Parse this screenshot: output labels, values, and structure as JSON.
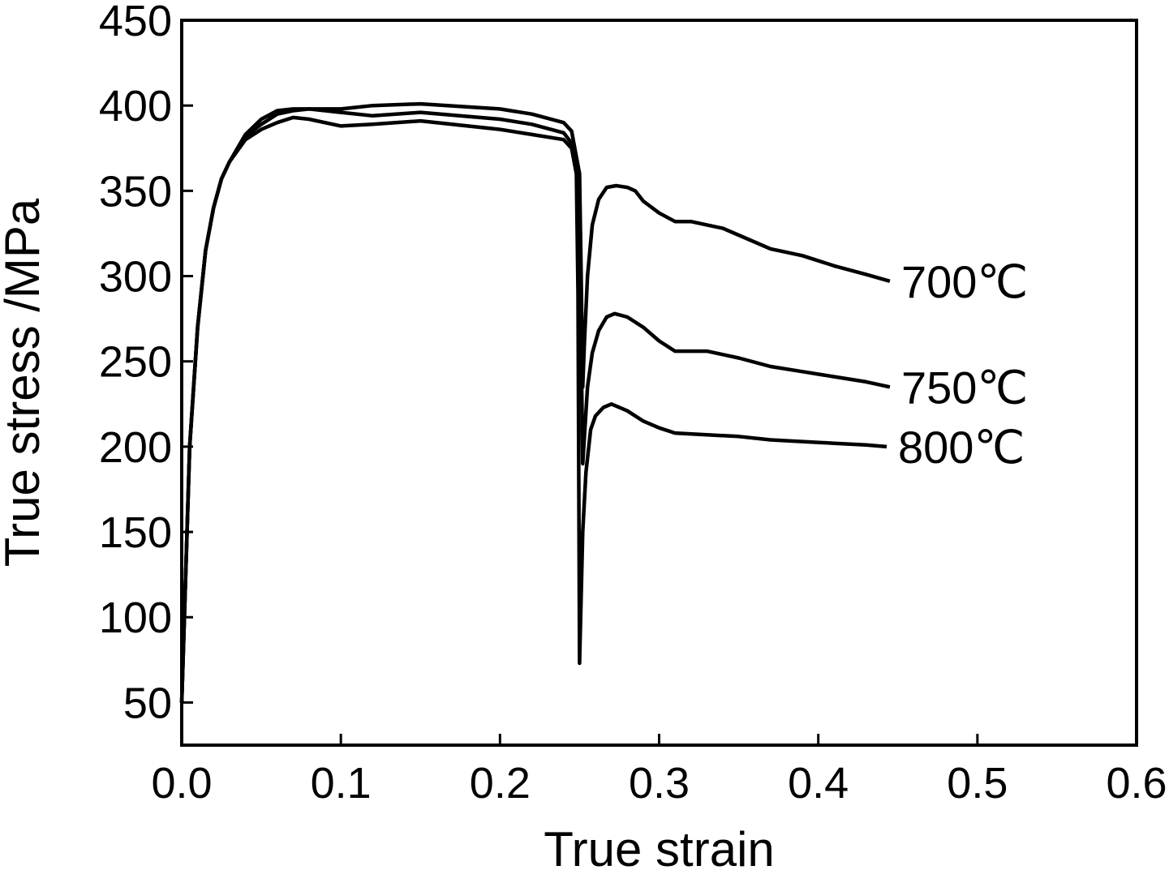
{
  "chart_data": {
    "type": "line",
    "xlabel": "True strain",
    "ylabel": "True stress /MPa",
    "xlim": [
      0.0,
      0.6
    ],
    "ylim": [
      25,
      450
    ],
    "x_ticks": [
      "0.0",
      "0.1",
      "0.2",
      "0.3",
      "0.4",
      "0.5",
      "0.6"
    ],
    "y_ticks": [
      "50",
      "100",
      "150",
      "200",
      "250",
      "300",
      "350",
      "400",
      "450"
    ],
    "grid": false,
    "legend": "inline labels at right end of curves",
    "series": [
      {
        "name": "700℃",
        "x": [
          0.0,
          0.005,
          0.01,
          0.015,
          0.02,
          0.025,
          0.03,
          0.04,
          0.05,
          0.06,
          0.07,
          0.08,
          0.1,
          0.12,
          0.15,
          0.2,
          0.22,
          0.24,
          0.245,
          0.25,
          0.251,
          0.252,
          0.253,
          0.255,
          0.258,
          0.262,
          0.267,
          0.273,
          0.28,
          0.285,
          0.29,
          0.3,
          0.31,
          0.32,
          0.33,
          0.34,
          0.35,
          0.37,
          0.39,
          0.41,
          0.43,
          0.445
        ],
        "y": [
          50,
          200,
          270,
          315,
          340,
          357,
          367,
          383,
          392,
          397,
          398,
          398,
          398,
          400,
          401,
          398,
          395,
          390,
          385,
          360,
          300,
          235,
          260,
          300,
          330,
          345,
          352,
          353,
          352,
          350,
          344,
          337,
          332,
          332,
          330,
          328,
          324,
          316,
          312,
          306,
          301,
          297
        ]
      },
      {
        "name": "750℃",
        "x": [
          0.0,
          0.005,
          0.01,
          0.015,
          0.02,
          0.025,
          0.03,
          0.04,
          0.05,
          0.06,
          0.07,
          0.08,
          0.1,
          0.12,
          0.15,
          0.2,
          0.22,
          0.24,
          0.245,
          0.25,
          0.251,
          0.252,
          0.253,
          0.255,
          0.258,
          0.262,
          0.267,
          0.272,
          0.28,
          0.29,
          0.3,
          0.31,
          0.32,
          0.33,
          0.35,
          0.37,
          0.39,
          0.41,
          0.43,
          0.445
        ],
        "y": [
          50,
          200,
          270,
          315,
          340,
          357,
          367,
          382,
          389,
          395,
          397,
          398,
          396,
          394,
          396,
          392,
          389,
          384,
          378,
          350,
          260,
          190,
          205,
          235,
          255,
          268,
          276,
          278,
          276,
          270,
          262,
          256,
          256,
          256,
          252,
          247,
          244,
          241,
          238,
          235
        ]
      },
      {
        "name": "800℃",
        "x": [
          0.0,
          0.005,
          0.01,
          0.015,
          0.02,
          0.025,
          0.03,
          0.04,
          0.05,
          0.06,
          0.07,
          0.08,
          0.1,
          0.12,
          0.15,
          0.2,
          0.22,
          0.24,
          0.245,
          0.248,
          0.249,
          0.25,
          0.252,
          0.254,
          0.257,
          0.26,
          0.265,
          0.27,
          0.28,
          0.29,
          0.3,
          0.31,
          0.33,
          0.35,
          0.37,
          0.39,
          0.41,
          0.43,
          0.443
        ],
        "y": [
          50,
          200,
          270,
          315,
          340,
          357,
          367,
          380,
          386,
          390,
          393,
          392,
          388,
          389,
          391,
          386,
          383,
          380,
          375,
          360,
          290,
          73,
          150,
          185,
          210,
          218,
          223,
          225,
          221,
          215,
          211,
          208,
          207,
          206,
          204,
          203,
          202,
          201,
          200
        ]
      }
    ]
  }
}
